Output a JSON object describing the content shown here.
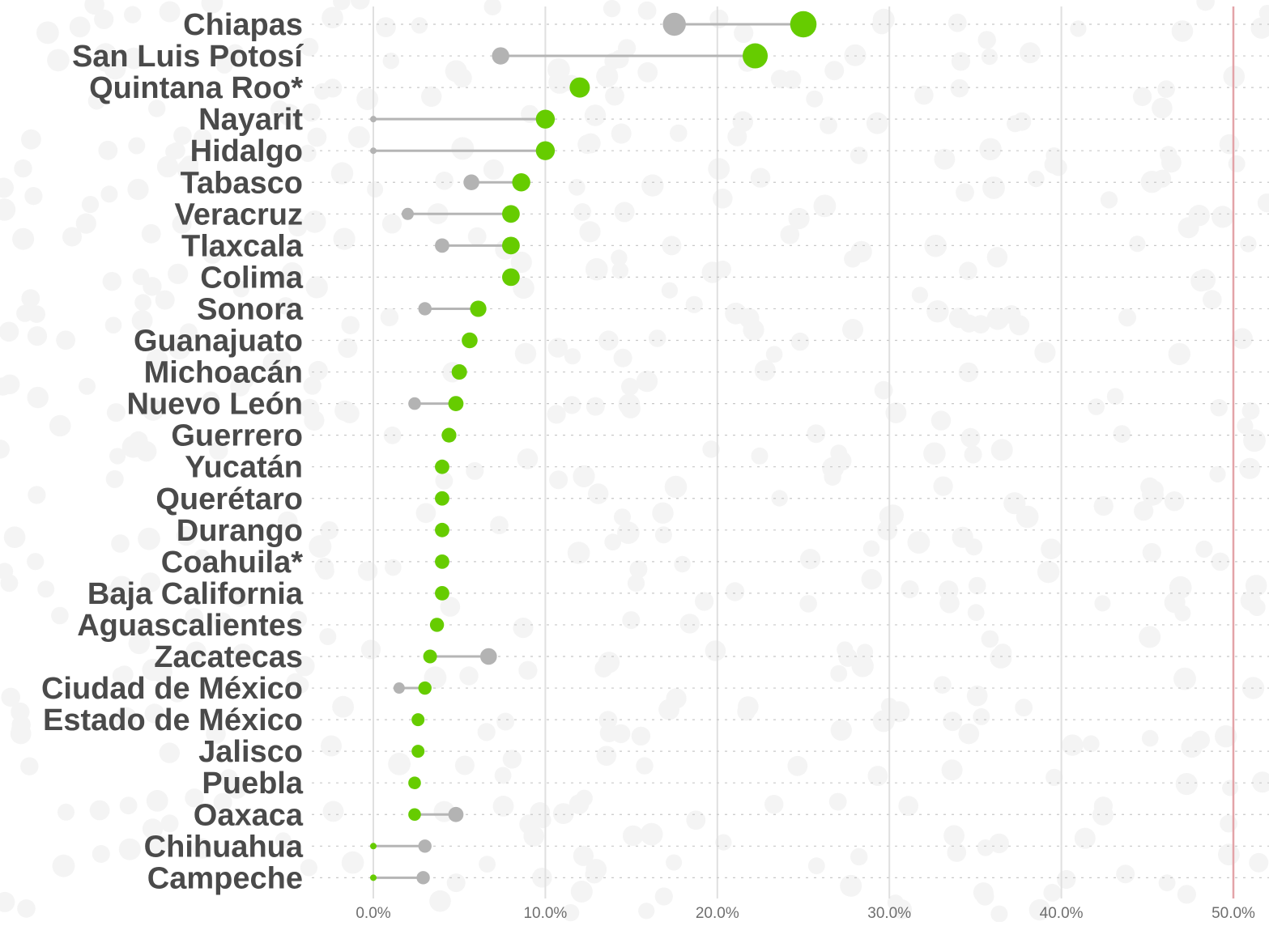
{
  "chart_data": {
    "type": "dumbbell",
    "title": "",
    "xlabel": "",
    "ylabel": "",
    "xlim": [
      -3.5,
      52
    ],
    "x_ticks": [
      {
        "value": 0,
        "label": "0.0%"
      },
      {
        "value": 10,
        "label": "10.0%"
      },
      {
        "value": 20,
        "label": "20.0%"
      },
      {
        "value": 30,
        "label": "30.0%"
      },
      {
        "value": 40,
        "label": "40.0%"
      },
      {
        "value": 50,
        "label": "50.0%"
      }
    ],
    "reference_line": {
      "value": 50,
      "color": "#e3a3a8"
    },
    "grid": true,
    "legend": "none",
    "series": [
      {
        "key": "earlier",
        "color": "#b3b3b3"
      },
      {
        "key": "latest",
        "color": "#66cc00"
      }
    ],
    "rows": [
      {
        "state": "Chiapas",
        "earlier": 17.5,
        "latest": 25.0
      },
      {
        "state": "San Luis Potosí",
        "earlier": 7.4,
        "latest": 22.2
      },
      {
        "state": "Quintana Roo*",
        "earlier": null,
        "latest": 12.0
      },
      {
        "state": "Nayarit",
        "earlier": 0.0,
        "latest": 10.0
      },
      {
        "state": "Hidalgo",
        "earlier": 0.0,
        "latest": 10.0
      },
      {
        "state": "Tabasco",
        "earlier": 5.7,
        "latest": 8.6
      },
      {
        "state": "Veracruz",
        "earlier": 2.0,
        "latest": 8.0
      },
      {
        "state": "Tlaxcala",
        "earlier": 4.0,
        "latest": 8.0
      },
      {
        "state": "Colima",
        "earlier": null,
        "latest": 8.0
      },
      {
        "state": "Sonora",
        "earlier": 3.0,
        "latest": 6.1
      },
      {
        "state": "Guanajuato",
        "earlier": null,
        "latest": 5.6
      },
      {
        "state": "Michoacán",
        "earlier": null,
        "latest": 5.0
      },
      {
        "state": "Nuevo León",
        "earlier": 2.4,
        "latest": 4.8
      },
      {
        "state": "Guerrero",
        "earlier": null,
        "latest": 4.4
      },
      {
        "state": "Yucatán",
        "earlier": null,
        "latest": 4.0
      },
      {
        "state": "Querétaro",
        "earlier": null,
        "latest": 4.0
      },
      {
        "state": "Durango",
        "earlier": null,
        "latest": 4.0
      },
      {
        "state": "Coahuila*",
        "earlier": null,
        "latest": 4.0
      },
      {
        "state": "Baja California",
        "earlier": null,
        "latest": 4.0
      },
      {
        "state": "Aguascalientes",
        "earlier": null,
        "latest": 3.7
      },
      {
        "state": "Zacatecas",
        "earlier": 6.7,
        "latest": 3.3
      },
      {
        "state": "Ciudad de México",
        "earlier": 1.5,
        "latest": 3.0
      },
      {
        "state": "Estado de México",
        "earlier": null,
        "latest": 2.6
      },
      {
        "state": "Jalisco",
        "earlier": null,
        "latest": 2.6
      },
      {
        "state": "Puebla",
        "earlier": null,
        "latest": 2.4
      },
      {
        "state": "Oaxaca",
        "earlier": 4.8,
        "latest": 2.4
      },
      {
        "state": "Chihuahua",
        "earlier": 3.0,
        "latest": 0.0
      },
      {
        "state": "Campeche",
        "earlier": 2.9,
        "latest": 0.0
      }
    ]
  }
}
